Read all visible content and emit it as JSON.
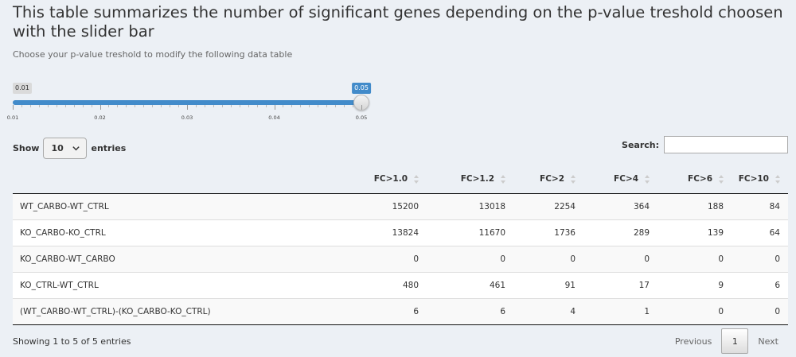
{
  "header": {
    "title": "This table summarizes the number of significant genes depending on the p-value treshold choosen with the slider bar",
    "subtitle": "Choose your p-value treshold to modify the following data table"
  },
  "slider": {
    "min": 0.01,
    "max": 0.05,
    "value": 0.05,
    "min_label": "0.01",
    "value_label": "0.05",
    "accent_color": "#428bca",
    "ticks": [
      "0.01",
      "0.02",
      "0.03",
      "0.04",
      "0.05"
    ]
  },
  "length": {
    "show_label": "Show",
    "selected": "10",
    "entries_label": "entries"
  },
  "search": {
    "label": "Search:",
    "value": ""
  },
  "table": {
    "columns": [
      "",
      "FC>1.0",
      "FC>1.2",
      "FC>2",
      "FC>4",
      "FC>6",
      "FC>10"
    ],
    "rows": [
      [
        "WT_CARBO-WT_CTRL",
        "15200",
        "13018",
        "2254",
        "364",
        "188",
        "84"
      ],
      [
        "KO_CARBO-KO_CTRL",
        "13824",
        "11670",
        "1736",
        "289",
        "139",
        "64"
      ],
      [
        "KO_CARBO-WT_CARBO",
        "0",
        "0",
        "0",
        "0",
        "0",
        "0"
      ],
      [
        "KO_CTRL-WT_CTRL",
        "480",
        "461",
        "91",
        "17",
        "9",
        "6"
      ],
      [
        "(WT_CARBO-WT_CTRL)-(KO_CARBO-KO_CTRL)",
        "6",
        "6",
        "4",
        "1",
        "0",
        "0"
      ]
    ]
  },
  "footer": {
    "info": "Showing 1 to 5 of 5 entries",
    "previous": "Previous",
    "current_page": "1",
    "next": "Next"
  }
}
